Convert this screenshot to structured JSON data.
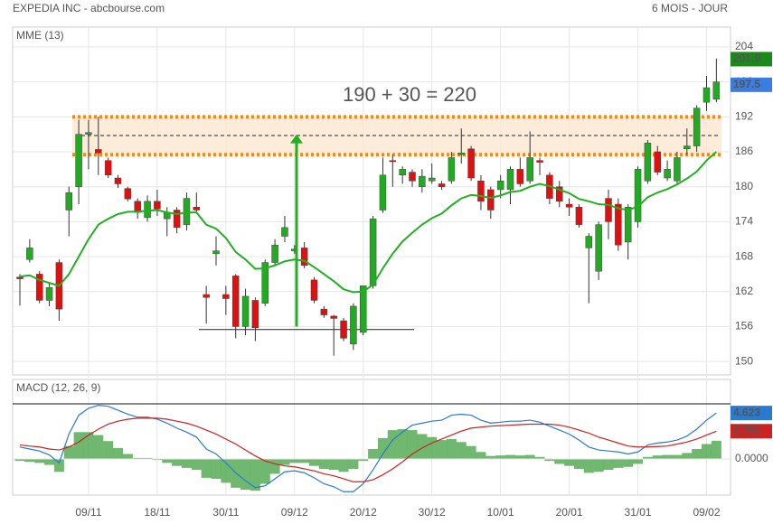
{
  "header": {
    "title": "EXPEDIA INC - abcbourse.com",
    "period": "6 MOIS - JOUR"
  },
  "chart_data": [
    {
      "type": "candlestick",
      "categories": [
        null,
        null,
        null,
        null,
        null,
        null,
        null,
        "09/11",
        null,
        null,
        null,
        null,
        null,
        null,
        "18/11",
        null,
        null,
        null,
        null,
        null,
        null,
        "30/11",
        null,
        null,
        null,
        null,
        null,
        null,
        "09/12",
        null,
        null,
        null,
        null,
        null,
        null,
        "20/12",
        null,
        null,
        null,
        null,
        null,
        null,
        "30/12",
        null,
        null,
        null,
        null,
        null,
        null,
        "10/01",
        null,
        null,
        null,
        null,
        null,
        null,
        "20/01",
        null,
        null,
        null,
        null,
        null,
        null,
        "31/01",
        null,
        null,
        null,
        null,
        null,
        null,
        "09/02",
        null
      ],
      "open": [
        164.5,
        167.5,
        165,
        160.5,
        167,
        176,
        180,
        189,
        186.4,
        184.5,
        181.5,
        179.7,
        177.5,
        174.7,
        177.5,
        174.5,
        176,
        173.5,
        176.5,
        161.5,
        168.5,
        161.5,
        164.7,
        156,
        160.5,
        160,
        167,
        171.5,
        169,
        169.5,
        164,
        159,
        157.8,
        157,
        153,
        155,
        163,
        176,
        184.5,
        182,
        182.5,
        180,
        181,
        180.5,
        181,
        185.5,
        186.5,
        181,
        179.5,
        179.5,
        179.5,
        183,
        181,
        184.5,
        182,
        180,
        177,
        176.5,
        169.5,
        165.5,
        178,
        177,
        170.5,
        174,
        181,
        186,
        181.5,
        181,
        186.5,
        187,
        194.5,
        195
      ],
      "high": [
        165,
        171,
        165.5,
        163.5,
        167.5,
        180,
        191.5,
        191.5,
        192,
        185,
        182,
        180,
        178,
        178.5,
        179.5,
        176.5,
        176.5,
        179,
        179,
        163,
        171.5,
        163,
        165,
        162.5,
        161,
        167.5,
        171,
        175,
        170,
        170.5,
        164.5,
        159.5,
        158,
        157.5,
        160,
        163,
        175,
        185,
        185.5,
        183.5,
        183,
        183,
        184,
        181,
        186,
        190,
        187,
        182,
        180,
        182,
        183.5,
        185,
        189.5,
        185,
        182.5,
        181,
        178,
        177,
        172,
        174,
        179.5,
        178,
        177,
        183.5,
        188,
        187,
        184.5,
        186,
        190,
        194,
        199,
        202
      ],
      "low": [
        159.6,
        167,
        160,
        159.5,
        157,
        171.5,
        177,
        183,
        182,
        181.5,
        179.8,
        177.5,
        174.5,
        174,
        175,
        171.5,
        172,
        172.5,
        175.5,
        156.5,
        166.5,
        158,
        154,
        154.5,
        153.5,
        159.5,
        166.5,
        170.5,
        168.5,
        166,
        160,
        157.5,
        151,
        153.5,
        152,
        154.5,
        162.5,
        175.5,
        180,
        180.5,
        180,
        179,
        180.5,
        179.5,
        180.5,
        184,
        181,
        176,
        174.5,
        178,
        177,
        180,
        180.5,
        182,
        177,
        176.5,
        175,
        173,
        160,
        164,
        171,
        169,
        167.5,
        173,
        180.5,
        182,
        181,
        180.5,
        185.5,
        186,
        193,
        194.5
      ],
      "close": [
        164.2,
        169.5,
        160.5,
        162.7,
        159,
        179,
        189,
        189.3,
        185.8,
        182,
        180.5,
        177.9,
        175.6,
        177.5,
        176.2,
        175.6,
        173,
        178,
        176,
        161,
        169,
        160.8,
        156,
        161.2,
        155.8,
        167,
        170,
        173,
        169.3,
        166.5,
        160.5,
        158,
        157.4,
        154,
        159.5,
        163,
        174.5,
        182,
        184.3,
        183,
        181,
        181.8,
        181.5,
        180,
        185,
        185.8,
        181.5,
        177.5,
        176,
        181,
        183,
        180.5,
        185,
        184.2,
        178,
        177.5,
        176.5,
        173.5,
        171.5,
        173.5,
        174,
        170,
        176.5,
        183,
        187.5,
        182.5,
        183,
        185,
        187,
        193.5,
        197,
        198
      ],
      "series": [
        {
          "name": "MME (13)",
          "color": "#22b022",
          "values": [
            164.6,
            164.8,
            164,
            163.5,
            163,
            165,
            168,
            171,
            173.5,
            174.5,
            175.3,
            175.7,
            175.7,
            175.9,
            176,
            175.6,
            175.3,
            175.6,
            175.6,
            173.5,
            172.8,
            171.2,
            168.8,
            167.5,
            165.9,
            166,
            166.5,
            167.2,
            167.5,
            167.3,
            166.2,
            165,
            163.8,
            162.4,
            161.9,
            162,
            163.2,
            166,
            168.5,
            170.6,
            172.1,
            173.5,
            174.6,
            175.4,
            176.8,
            178,
            178.6,
            178.4,
            178.1,
            178.5,
            179.1,
            179.3,
            180,
            180.5,
            180.1,
            179.5,
            178.9,
            177.9,
            177.5,
            177,
            176.9,
            176.3,
            176,
            176.6,
            178.2,
            179,
            179.6,
            180.4,
            181.4,
            182.6,
            184.5,
            186
          ]
        }
      ],
      "up_color": "#22aa22",
      "down_color": "#dd1111",
      "ylim": [
        147.7,
        207.4
      ],
      "yticks": [
        150,
        156,
        162,
        168,
        174,
        180,
        186,
        192,
        198,
        204
      ],
      "grid": true,
      "annotation": "190 + 30 = 220",
      "resistance": [
        185.5,
        192
      ],
      "pivot": 188.8,
      "support": 155.5,
      "arrow": [
        156,
        189
      ],
      "price_tags": [
        {
          "value": 201.9,
          "color": "#1a8a1a"
        },
        {
          "value": 197.5,
          "color": "#3a7de0"
        }
      ]
    },
    {
      "type": "macd",
      "title": "MACD (12, 26, 9)",
      "series": [
        {
          "color": "#2a7ad0",
          "values": [
            1.2,
            1.0,
            0.8,
            0.4,
            -0.4,
            2.5,
            4.4,
            5.1,
            5.4,
            5.3,
            4.9,
            4.5,
            4.2,
            4.2,
            4.0,
            3.6,
            3.1,
            2.7,
            2.2,
            1.0,
            0.5,
            -0.4,
            -1.4,
            -2.2,
            -2.9,
            -2.7,
            -2.0,
            -1.3,
            -1.2,
            -1.4,
            -1.9,
            -2.5,
            -2.8,
            -3.3,
            -3.3,
            -2.5,
            -1.1,
            0.5,
            1.9,
            2.7,
            3.4,
            3.6,
            3.8,
            3.9,
            4.4,
            4.5,
            4.4,
            3.9,
            3.6,
            3.7,
            3.8,
            3.8,
            3.9,
            3.7,
            3.3,
            2.9,
            2.5,
            1.9,
            1.2,
            0.9,
            0.8,
            0.7,
            0.5,
            0.7,
            1.4,
            1.6,
            1.7,
            1.9,
            2.3,
            3.0,
            3.9,
            4.623
          ]
        },
        {
          "color": "#cc2222",
          "values": [
            1.4,
            1.3,
            1.2,
            1.0,
            0.9,
            1.2,
            1.7,
            2.4,
            3.0,
            3.5,
            3.8,
            4.0,
            4.1,
            4.1,
            4.1,
            4.0,
            3.8,
            3.6,
            3.3,
            2.9,
            2.5,
            2.0,
            1.5,
            0.9,
            0.3,
            -0.2,
            -0.5,
            -0.7,
            -0.8,
            -1.0,
            -1.2,
            -1.5,
            -1.7,
            -2.0,
            -2.3,
            -2.3,
            -2.1,
            -1.6,
            -1.0,
            -0.3,
            0.5,
            1.1,
            1.6,
            2.0,
            2.4,
            2.8,
            3.1,
            3.2,
            3.3,
            3.35,
            3.4,
            3.45,
            3.5,
            3.5,
            3.5,
            3.4,
            3.2,
            2.9,
            2.6,
            2.2,
            1.9,
            1.6,
            1.3,
            1.2,
            1.2,
            1.25,
            1.3,
            1.5,
            1.7,
            2.0,
            2.4,
            2.792
          ]
        }
      ],
      "histogram": {
        "color": "#4ca64c",
        "values": [
          -0.2,
          -0.3,
          -0.4,
          -0.6,
          -1.3,
          1.3,
          2.7,
          2.7,
          2.4,
          1.8,
          1.1,
          0.5,
          0.1,
          0.1,
          -0.1,
          -0.4,
          -0.7,
          -0.9,
          -1.1,
          -1.9,
          -2.0,
          -2.4,
          -2.9,
          -3.1,
          -3.2,
          -2.5,
          -1.5,
          -0.6,
          -0.4,
          -0.4,
          -0.7,
          -1.0,
          -1.1,
          -1.3,
          -1.0,
          -0.2,
          1.0,
          2.1,
          2.9,
          3.0,
          2.9,
          2.5,
          2.2,
          1.9,
          2.0,
          1.7,
          1.3,
          0.7,
          0.3,
          0.35,
          0.4,
          0.35,
          0.4,
          0.2,
          -0.2,
          -0.5,
          -0.7,
          -1.0,
          -1.4,
          -1.3,
          -1.1,
          -0.9,
          -0.8,
          -0.5,
          0.2,
          0.35,
          0.4,
          0.4,
          0.6,
          1.0,
          1.5,
          1.831
        ]
      },
      "ylim": [
        -3.64,
        8.0
      ],
      "yticks": [
        {
          "value": 0,
          "label": "0.0000"
        }
      ],
      "tags": [
        {
          "value": 4.623,
          "color": "#2a7ad0"
        },
        {
          "value": 2.792,
          "color": "#cc2222"
        }
      ]
    }
  ]
}
